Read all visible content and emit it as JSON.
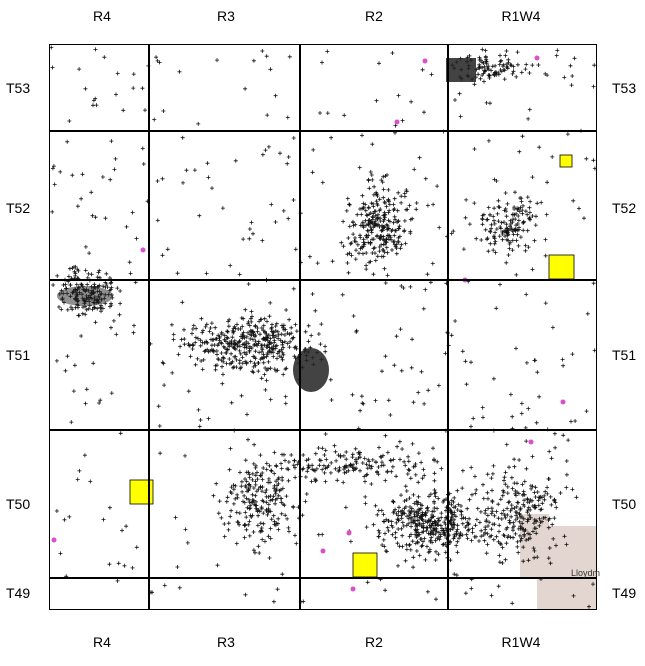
{
  "range_labels": [
    "R4",
    "R3",
    "R2",
    "R1W4"
  ],
  "township_labels": [
    "T53",
    "T52",
    "T51",
    "T50",
    "T49"
  ],
  "town_label": "Lloydm",
  "colors": {
    "grid": "#000000",
    "point": "#111111",
    "highlight_square": "#ffff00",
    "town_area": "#e3d6d0",
    "well_accent": "#d94fd0"
  }
}
